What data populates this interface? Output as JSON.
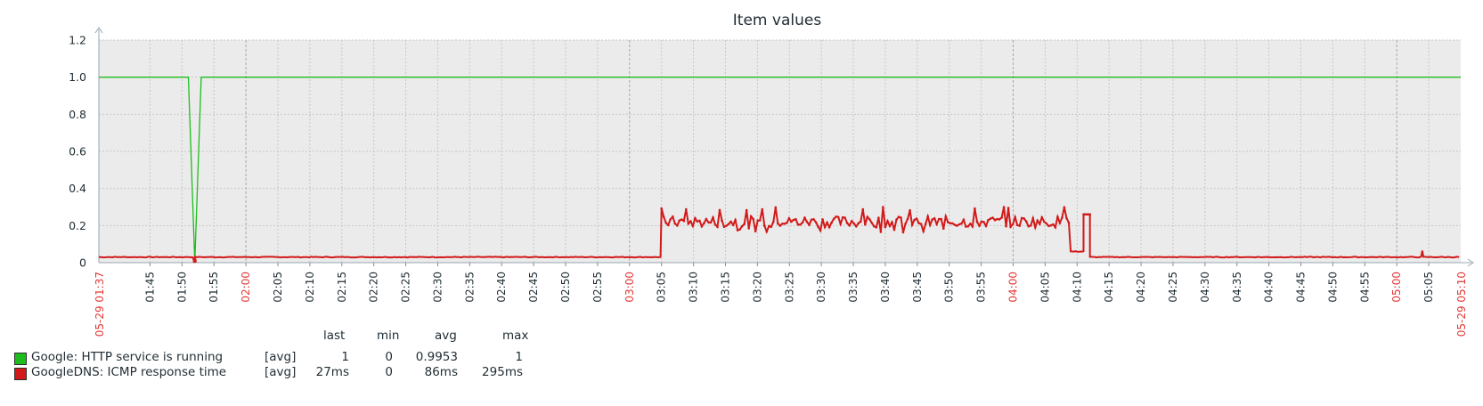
{
  "chart_data": {
    "type": "line",
    "title": "Item values",
    "ylim": [
      0,
      1.2
    ],
    "y_ticks": [
      "0",
      "0.2",
      "0.4",
      "0.6",
      "0.8",
      "1.0",
      "1.2"
    ],
    "x_range": [
      "01:37",
      "05:10"
    ],
    "x_start_label": "05-29 01:37",
    "x_end_label": "05-29 05:10",
    "x_ticks": [
      "01:45",
      "01:50",
      "01:55",
      "02:00",
      "02:05",
      "02:10",
      "02:15",
      "02:20",
      "02:25",
      "02:30",
      "02:35",
      "02:40",
      "02:45",
      "02:50",
      "02:55",
      "03:00",
      "03:05",
      "03:10",
      "03:15",
      "03:20",
      "03:25",
      "03:30",
      "03:35",
      "03:40",
      "03:45",
      "03:50",
      "03:55",
      "04:00",
      "04:05",
      "04:10",
      "04:15",
      "04:20",
      "04:25",
      "04:30",
      "04:35",
      "04:40",
      "04:45",
      "04:50",
      "04:55",
      "05:00",
      "05:05"
    ],
    "x_ticks_highlighted": [
      "02:00",
      "03:00",
      "04:00",
      "05:00"
    ],
    "grid": true,
    "series": [
      {
        "name": "Google: HTTP service is running",
        "color": "#1ebd1e",
        "points": [
          [
            "01:37",
            1
          ],
          [
            "01:51",
            1
          ],
          [
            "01:52",
            0
          ],
          [
            "01:53",
            1
          ],
          [
            "05:10",
            1
          ]
        ]
      },
      {
        "name": "GoogleDNS: ICMP response time",
        "color": "#d21a1a",
        "segments": [
          {
            "from": "01:37",
            "to": "03:05",
            "level": 0.03
          },
          {
            "from": "03:05",
            "to": "04:09",
            "level": 0.22,
            "range": [
              0.11,
              0.3
            ]
          },
          {
            "from": "04:09",
            "to": "04:11",
            "level": 0.06
          },
          {
            "from": "04:11",
            "to": "04:12",
            "level": 0.26
          },
          {
            "from": "04:12",
            "to": "05:10",
            "level": 0.03
          }
        ],
        "notable_points": [
          [
            "01:52",
            0
          ],
          [
            "05:04",
            0.065
          ]
        ]
      }
    ]
  },
  "legend": {
    "headers": {
      "last": "last",
      "min": "min",
      "avg": "avg",
      "max": "max"
    },
    "items": [
      {
        "color": "#1ebd1e",
        "name": "Google: HTTP service is running",
        "func": "[avg]",
        "last": "1",
        "min": "0",
        "avg": "0.9953",
        "max": "1"
      },
      {
        "color": "#d21a1a",
        "name": "GoogleDNS: ICMP response time",
        "func": "[avg]",
        "last": "27ms",
        "min": "0",
        "avg": "86ms",
        "max": "295ms"
      }
    ]
  }
}
